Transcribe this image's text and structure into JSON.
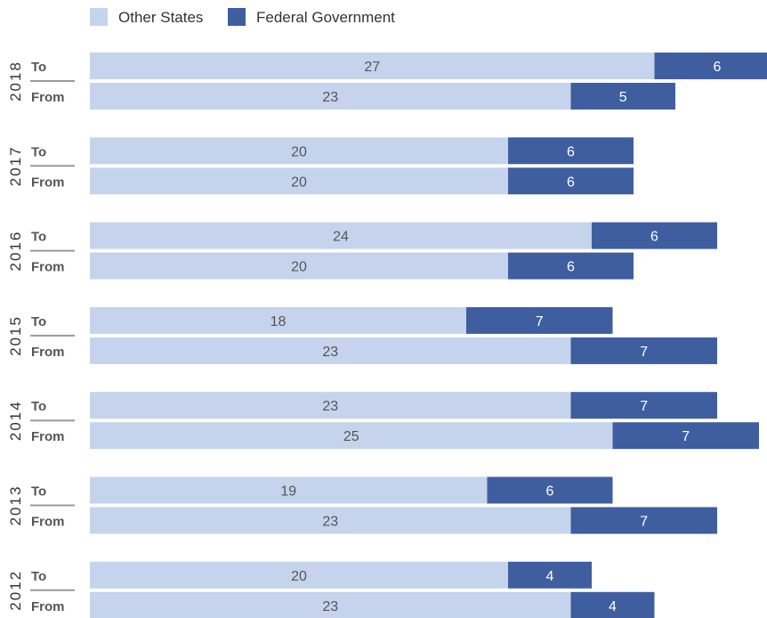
{
  "chart_data": {
    "type": "bar",
    "orientation": "horizontal",
    "stacked": true,
    "legend": {
      "placement": "top-left",
      "items": [
        {
          "name": "Other States",
          "color": "#c5d4ec"
        },
        {
          "name": "Federal Government",
          "color": "#3f5ea0"
        }
      ]
    },
    "row_labels": [
      "To",
      "From"
    ],
    "groups": [
      {
        "year": "2018",
        "rows": [
          {
            "label": "To",
            "other_states": 27,
            "federal_government": 6
          },
          {
            "label": "From",
            "other_states": 23,
            "federal_government": 5
          }
        ]
      },
      {
        "year": "2017",
        "rows": [
          {
            "label": "To",
            "other_states": 20,
            "federal_government": 6
          },
          {
            "label": "From",
            "other_states": 20,
            "federal_government": 6
          }
        ]
      },
      {
        "year": "2016",
        "rows": [
          {
            "label": "To",
            "other_states": 24,
            "federal_government": 6
          },
          {
            "label": "From",
            "other_states": 20,
            "federal_government": 6
          }
        ]
      },
      {
        "year": "2015",
        "rows": [
          {
            "label": "To",
            "other_states": 18,
            "federal_government": 7
          },
          {
            "label": "From",
            "other_states": 23,
            "federal_government": 7
          }
        ]
      },
      {
        "year": "2014",
        "rows": [
          {
            "label": "To",
            "other_states": 23,
            "federal_government": 7
          },
          {
            "label": "From",
            "other_states": 25,
            "federal_government": 7
          }
        ]
      },
      {
        "year": "2013",
        "rows": [
          {
            "label": "To",
            "other_states": 19,
            "federal_government": 6
          },
          {
            "label": "From",
            "other_states": 23,
            "federal_government": 7
          }
        ]
      },
      {
        "year": "2012",
        "rows": [
          {
            "label": "To",
            "other_states": 20,
            "federal_government": 4
          },
          {
            "label": "From",
            "other_states": 23,
            "federal_government": 4
          }
        ]
      }
    ],
    "xlim": [
      0,
      32
    ],
    "grid": false
  }
}
